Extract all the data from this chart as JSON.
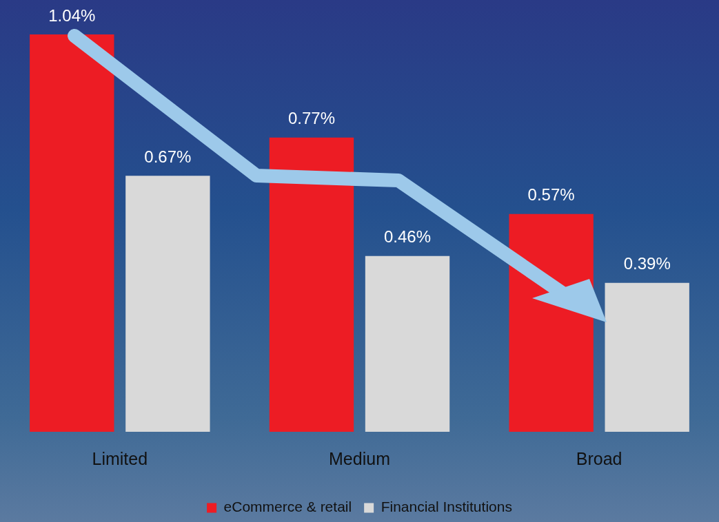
{
  "chart_data": {
    "type": "bar",
    "categories": [
      "Limited",
      "Medium",
      "Broad"
    ],
    "series": [
      {
        "name": "eCommerce & retail",
        "color": "#ed1c24",
        "values": [
          1.04,
          0.77,
          0.57
        ],
        "value_labels": [
          "1.04%",
          "0.77%",
          "0.57%"
        ]
      },
      {
        "name": "Financial Institutions",
        "color": "#d9d9d9",
        "values": [
          0.67,
          0.46,
          0.39
        ],
        "value_labels": [
          "0.67%",
          "0.46%",
          "0.39%"
        ]
      }
    ],
    "legend": "bottom",
    "grid": false
  }
}
